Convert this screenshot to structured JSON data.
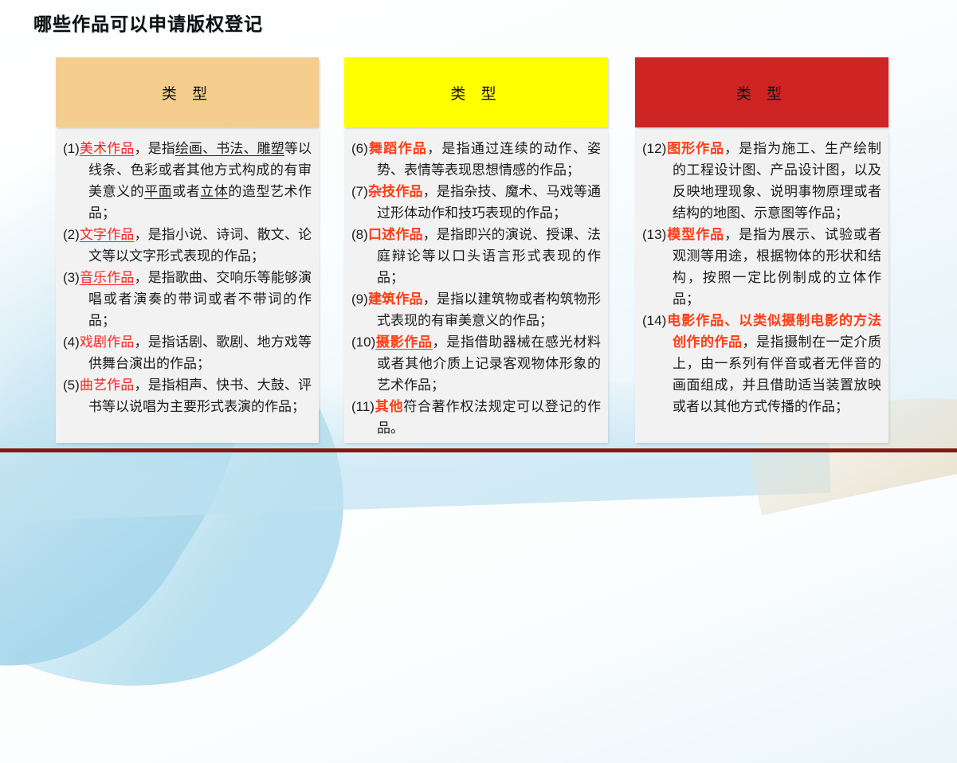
{
  "page": {
    "title": "哪些作品可以申请版权登记"
  },
  "colors": {
    "header_bg_1": "#f5ce8f",
    "header_bg_2": "#ffff00",
    "header_bg_3": "#ce2424",
    "body_bg": "#f2f2f2",
    "term_red": "#ff2222",
    "term_orange": "#ff3c14",
    "bottom_bar": "#8b1512"
  },
  "columns": [
    {
      "header": "类 型",
      "items": [
        {
          "segments": [
            {
              "t": "(1)",
              "s": "n"
            },
            {
              "t": "美术作品",
              "s": "tu"
            },
            {
              "t": "，是指",
              "s": "n"
            },
            {
              "t": "绘画、书法、雕塑",
              "s": "u"
            },
            {
              "t": "等以线条、色彩或者其他方式构成的有审美意义的",
              "s": "n"
            },
            {
              "t": "平面",
              "s": "u"
            },
            {
              "t": "或者",
              "s": "n"
            },
            {
              "t": "立体",
              "s": "u"
            },
            {
              "t": "的造型艺术作品；",
              "s": "n"
            }
          ]
        },
        {
          "segments": [
            {
              "t": "(2)",
              "s": "n"
            },
            {
              "t": "文字作品",
              "s": "tu"
            },
            {
              "t": "，是指小说、诗词、散文、论文等以文字形式表现的作品；",
              "s": "n"
            }
          ]
        },
        {
          "segments": [
            {
              "t": "(3)",
              "s": "n"
            },
            {
              "t": "音乐作品",
              "s": "tu"
            },
            {
              "t": "，是指歌曲、交响乐等能够演唱或者演奏的带词或者不带词的作品；",
              "s": "n"
            }
          ]
        },
        {
          "segments": [
            {
              "t": "(4)",
              "s": "n"
            },
            {
              "t": "戏剧作品",
              "s": "t"
            },
            {
              "t": "，是指话剧、歌剧、地方戏等供舞台演出的作品；",
              "s": "n"
            }
          ]
        },
        {
          "segments": [
            {
              "t": "(5)",
              "s": "n"
            },
            {
              "t": "曲艺作品",
              "s": "t"
            },
            {
              "t": "，是指相声、快书、大鼓、评书等以说唱为主要形式表演的作品；",
              "s": "n"
            }
          ]
        }
      ]
    },
    {
      "header": "类 型",
      "items": [
        {
          "segments": [
            {
              "t": "(6)",
              "s": "n"
            },
            {
              "t": "舞蹈作品",
              "s": "b"
            },
            {
              "t": "，是指通过连续的动作、姿势、表情等表现思想情感的作品；",
              "s": "n"
            }
          ]
        },
        {
          "segments": [
            {
              "t": "(7)",
              "s": "n"
            },
            {
              "t": "杂技作品",
              "s": "b"
            },
            {
              "t": "，是指杂技、魔术、马戏等通过形体动作和技巧表现的作品；",
              "s": "n"
            }
          ]
        },
        {
          "segments": [
            {
              "t": "(8)",
              "s": "n"
            },
            {
              "t": "口述作品",
              "s": "b"
            },
            {
              "t": "，是指即兴的演说、授课、法庭辩论等以口头语言形式表现的作品；",
              "s": "n"
            }
          ]
        },
        {
          "segments": [
            {
              "t": "(9)",
              "s": "n"
            },
            {
              "t": "建筑作品",
              "s": "b"
            },
            {
              "t": "，是指以建筑物或者构筑物形式表现的有审美意义的作品；",
              "s": "n"
            }
          ]
        },
        {
          "segments": [
            {
              "t": "(10)",
              "s": "n"
            },
            {
              "t": "摄影作品",
              "s": "bu"
            },
            {
              "t": "，是指借助器械在感光材料或者其他介质上记录客观物体形象的艺术作品；",
              "s": "n"
            }
          ]
        },
        {
          "segments": [
            {
              "t": "(11)",
              "s": "n"
            },
            {
              "t": "其他",
              "s": "b"
            },
            {
              "t": "符合著作权法规定可以登记的作品。",
              "s": "n"
            }
          ]
        }
      ]
    },
    {
      "header": "类 型",
      "items": [
        {
          "segments": [
            {
              "t": "(12)",
              "s": "n"
            },
            {
              "t": "图形作品",
              "s": "b"
            },
            {
              "t": "，是指为施工、生产绘制的工程设计图、产品设计图，以及反映地理现象、说明事物原理或者结构的地图、示意图等作品；",
              "s": "n"
            }
          ]
        },
        {
          "segments": [
            {
              "t": "(13)",
              "s": "n"
            },
            {
              "t": "模型作品",
              "s": "b"
            },
            {
              "t": "，是指为展示、试验或者观测等用途，根据物体的形状和结构，按照一定比例制成的立体作品；",
              "s": "n"
            }
          ]
        },
        {
          "segments": [
            {
              "t": "(14)",
              "s": "n"
            },
            {
              "t": "电影作品、以类似摄制电影的方法创作的作品",
              "s": "b"
            },
            {
              "t": "，是指摄制在一定介质上，由一系列有伴音或者无伴音的画面组成，并且借助适当装置放映或者以其他方式传播的作品；",
              "s": "n"
            }
          ]
        }
      ]
    }
  ]
}
